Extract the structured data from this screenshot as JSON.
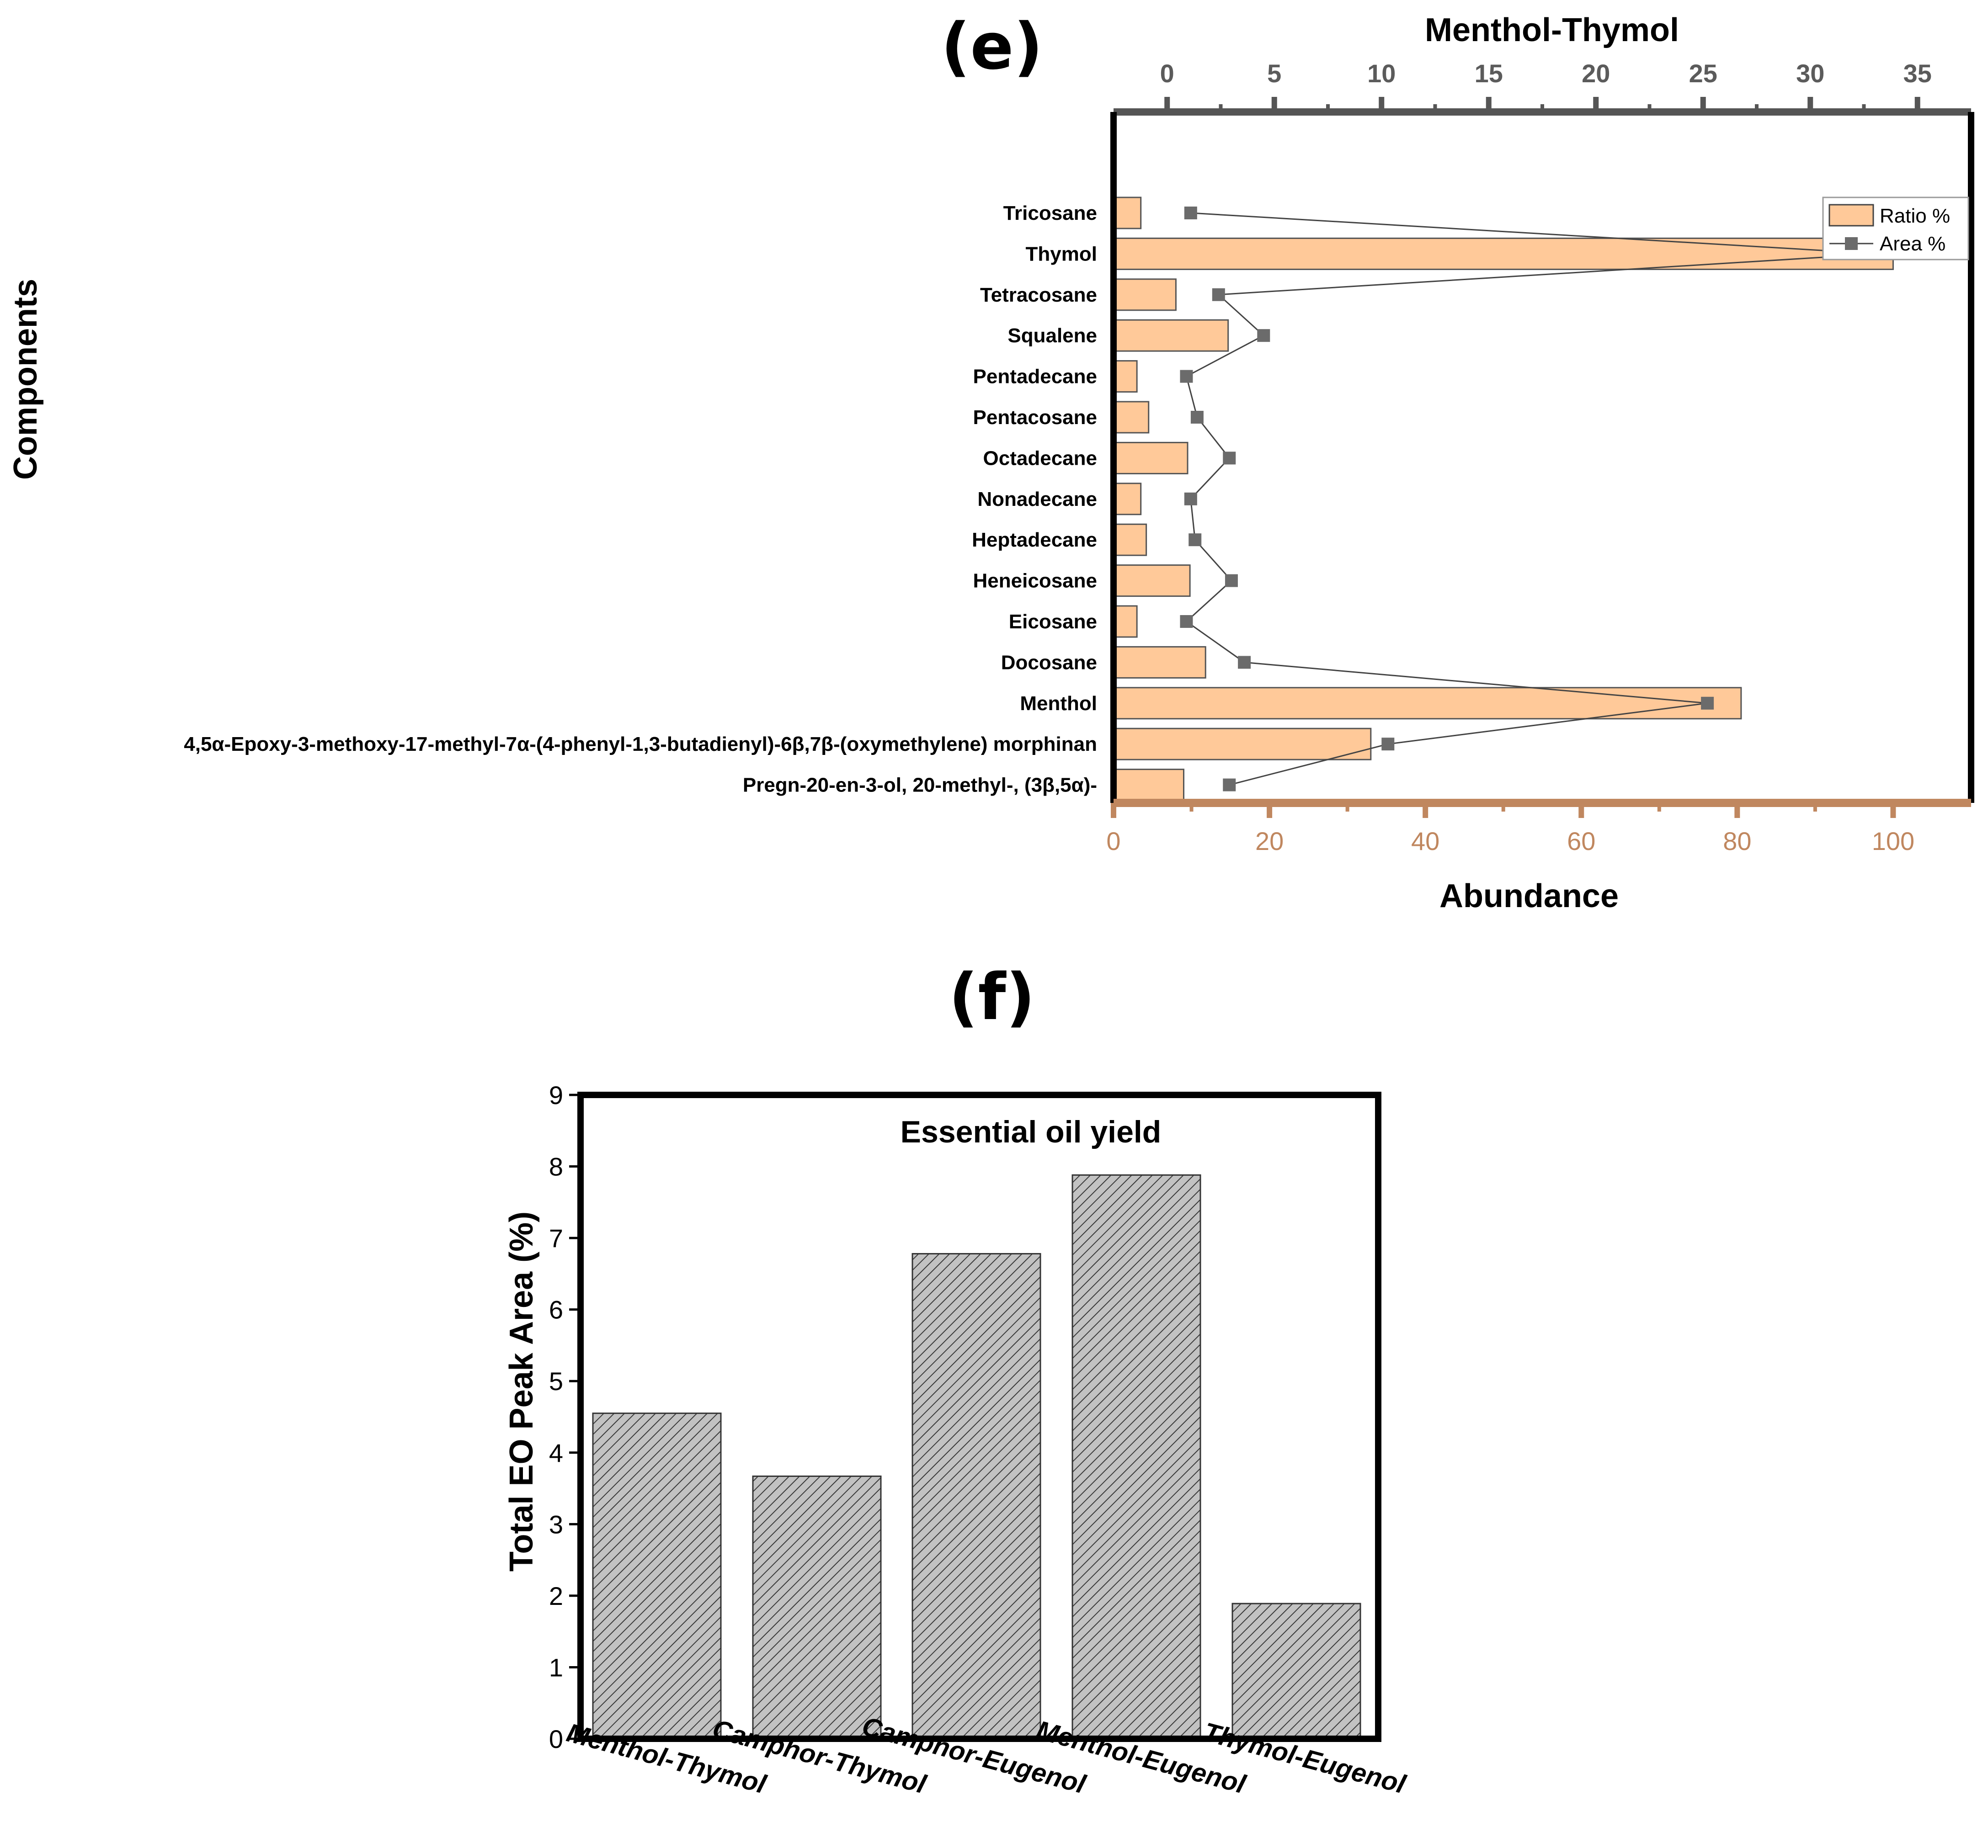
{
  "chart_data": [
    {
      "panel": "(e)",
      "type": "bar",
      "orientation": "horizontal",
      "title": "Menthol-Thymol",
      "xlabel": "Abundance",
      "ylabel": "Components",
      "xlim": [
        0,
        110
      ],
      "x_ticks": [
        0,
        20,
        40,
        60,
        80,
        100
      ],
      "top_axis": {
        "label": "Menthol-Thymol",
        "lim": [
          -2.5,
          37.5
        ],
        "ticks": [
          0,
          5,
          10,
          15,
          20,
          25,
          30,
          35
        ]
      },
      "categories": [
        "Tricosane",
        "Thymol",
        "Tetracosane",
        "Squalene",
        "Pentadecane",
        "Pentacosane",
        "Octadecane",
        "Nonadecane",
        "Heptadecane",
        "Heneicosane",
        "Eicosane",
        "Docosane",
        "Menthol",
        "4,5α-Epoxy-3-methoxy-17-methyl-7α-(4-phenyl-1,3-butadienyl)-6β,7β-(oxymethylene) morphinan",
        "Pregn-20-en-3-ol, 20-methyl-, (3β,5α)-"
      ],
      "series": [
        {
          "name": "Ratio %",
          "kind": "bar",
          "axis": "bottom",
          "color": "#ffc999",
          "values": [
            3.5,
            100,
            8,
            14.7,
            3,
            4.5,
            9.5,
            3.5,
            4.2,
            9.8,
            3,
            11.8,
            80.5,
            33,
            9
          ]
        },
        {
          "name": "Area %",
          "kind": "line",
          "axis": "top",
          "color": "#6b6b6b",
          "values": [
            1.1,
            33.2,
            2.4,
            4.5,
            0.9,
            1.4,
            2.9,
            1.1,
            1.3,
            3.0,
            0.9,
            3.6,
            25.2,
            10.3,
            2.9
          ]
        }
      ],
      "legend": [
        "Ratio %",
        "Area %"
      ],
      "legend_position": "top-right"
    },
    {
      "panel": "(f)",
      "type": "bar",
      "title": "Essential oil yield",
      "xlabel": "",
      "ylabel": "Total EO Peak Area (%)",
      "ylim": [
        0,
        9
      ],
      "y_ticks": [
        0,
        1,
        2,
        3,
        4,
        5,
        6,
        7,
        8,
        9
      ],
      "categories": [
        "Menthol-Thymol",
        "Camphor-Thymol",
        "Camphor-Eugenol",
        "Menthol-Eugenol",
        "Thymol-Eugenol"
      ],
      "values": [
        4.55,
        3.67,
        6.78,
        7.88,
        1.89
      ],
      "color": "#bdbdbd"
    }
  ]
}
